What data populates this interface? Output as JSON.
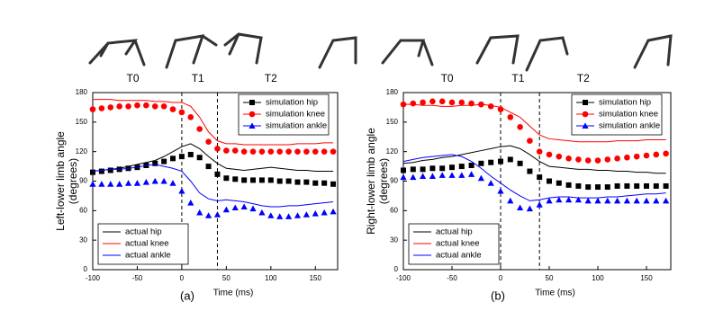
{
  "chart_data": [
    {
      "type": "line",
      "panel": "(a)",
      "xlabel": "Time (ms)",
      "ylabel": [
        "Left-lower limb angle",
        "(degrees)"
      ],
      "xlim": [
        -100,
        175
      ],
      "xticks": [
        -100,
        -50,
        0,
        50,
        100,
        150
      ],
      "ylim": [
        0,
        180
      ],
      "yticks": [
        0,
        30,
        60,
        90,
        120,
        150,
        180
      ],
      "vlines": [
        0,
        40
      ],
      "annotations": [
        {
          "text": "T0",
          "x": -55
        },
        {
          "text": "T1",
          "x": 18
        },
        {
          "text": "T2",
          "x": 100
        }
      ],
      "x": [
        -100,
        -90,
        -80,
        -70,
        -60,
        -50,
        -40,
        -30,
        -20,
        -10,
        0,
        10,
        20,
        30,
        40,
        50,
        60,
        70,
        80,
        90,
        100,
        110,
        120,
        130,
        140,
        150,
        160,
        170
      ],
      "series": [
        {
          "name": "simulation hip",
          "color": "#000000",
          "marker": "square",
          "legend": "upper right",
          "values": [
            99,
            100,
            101,
            102,
            103,
            104,
            106,
            108,
            110,
            113,
            115,
            117,
            114,
            105,
            97,
            93,
            92,
            91,
            91,
            91,
            91,
            90,
            90,
            89,
            89,
            88,
            88,
            87
          ]
        },
        {
          "name": "simulation knee",
          "color": "#ff0000",
          "marker": "circle",
          "legend": "upper right",
          "values": [
            163,
            164,
            165,
            166,
            166,
            167,
            167,
            166,
            166,
            163,
            160,
            155,
            143,
            130,
            123,
            121,
            121,
            120,
            120,
            120,
            120,
            120,
            120,
            120,
            120,
            120,
            120,
            120
          ]
        },
        {
          "name": "simulation ankle",
          "color": "#0000ff",
          "marker": "triangle",
          "legend": "upper right",
          "values": [
            87,
            87,
            87,
            87,
            88,
            88,
            89,
            90,
            90,
            88,
            80,
            68,
            58,
            55,
            56,
            61,
            63,
            64,
            62,
            58,
            55,
            54,
            54,
            55,
            56,
            57,
            58,
            59
          ]
        },
        {
          "name": "actual hip",
          "color": "#000000",
          "marker": "none",
          "legend": "lower left",
          "values": [
            100,
            101,
            102,
            103,
            105,
            107,
            109,
            111,
            115,
            120,
            125,
            128,
            123,
            115,
            108,
            103,
            102,
            101,
            102,
            103,
            104,
            103,
            102,
            101,
            101,
            100,
            100,
            100
          ]
        },
        {
          "name": "actual knee",
          "color": "#ff0000",
          "marker": "none",
          "legend": "lower left",
          "values": [
            173,
            173,
            173,
            172,
            172,
            172,
            172,
            171,
            171,
            170,
            170,
            166,
            155,
            140,
            131,
            128,
            128,
            127,
            127,
            127,
            127,
            127,
            127,
            128,
            128,
            128,
            129,
            129
          ]
        },
        {
          "name": "actual ankle",
          "color": "#0000ff",
          "marker": "none",
          "legend": "lower left",
          "values": [
            100,
            101,
            102,
            102,
            103,
            104,
            106,
            107,
            105,
            103,
            100,
            90,
            78,
            72,
            70,
            71,
            70,
            69,
            67,
            65,
            64,
            64,
            65,
            65,
            66,
            67,
            68,
            69
          ]
        }
      ]
    },
    {
      "type": "line",
      "panel": "(b)",
      "xlabel": "Time (ms)",
      "ylabel": [
        "Right-lower limb angle",
        "(degrees)"
      ],
      "xlim": [
        -100,
        175
      ],
      "xticks": [
        -100,
        -50,
        0,
        50,
        100,
        150
      ],
      "ylim": [
        0,
        180
      ],
      "yticks": [
        0,
        30,
        60,
        90,
        120,
        150,
        180
      ],
      "vlines": [
        0,
        40
      ],
      "annotations": [
        {
          "text": "T0",
          "x": -55
        },
        {
          "text": "T1",
          "x": 18
        },
        {
          "text": "T2",
          "x": 85
        }
      ],
      "x": [
        -100,
        -90,
        -80,
        -70,
        -60,
        -50,
        -40,
        -30,
        -20,
        -10,
        0,
        10,
        20,
        30,
        40,
        50,
        60,
        70,
        80,
        90,
        100,
        110,
        120,
        130,
        140,
        150,
        160,
        170
      ],
      "series": [
        {
          "name": "simulation hip",
          "color": "#000000",
          "marker": "square",
          "legend": "upper right",
          "values": [
            101,
            102,
            102,
            103,
            103,
            104,
            105,
            106,
            108,
            109,
            110,
            112,
            108,
            100,
            94,
            90,
            88,
            86,
            85,
            84,
            84,
            84,
            85,
            85,
            85,
            85,
            85,
            85
          ]
        },
        {
          "name": "simulation knee",
          "color": "#ff0000",
          "marker": "circle",
          "legend": "upper right",
          "values": [
            168,
            169,
            170,
            171,
            171,
            170,
            170,
            169,
            168,
            166,
            163,
            155,
            145,
            131,
            120,
            117,
            115,
            113,
            112,
            111,
            111,
            112,
            113,
            114,
            115,
            116,
            117,
            118
          ]
        },
        {
          "name": "simulation ankle",
          "color": "#0000ff",
          "marker": "triangle",
          "legend": "upper right",
          "values": [
            94,
            94,
            95,
            95,
            96,
            96,
            96,
            97,
            93,
            88,
            80,
            70,
            63,
            62,
            66,
            70,
            71,
            71,
            71,
            70,
            70,
            70,
            70,
            70,
            70,
            70,
            70,
            70
          ]
        },
        {
          "name": "actual hip",
          "color": "#000000",
          "marker": "none",
          "legend": "lower left",
          "values": [
            108,
            109,
            111,
            112,
            114,
            115,
            117,
            119,
            121,
            123,
            125,
            126,
            123,
            117,
            110,
            105,
            104,
            103,
            102,
            102,
            101,
            101,
            100,
            100,
            99,
            99,
            98,
            98
          ]
        },
        {
          "name": "actual knee",
          "color": "#ff0000",
          "marker": "none",
          "legend": "lower left",
          "values": [
            168,
            168,
            167,
            167,
            166,
            166,
            167,
            167,
            168,
            167,
            165,
            160,
            155,
            146,
            137,
            133,
            132,
            131,
            130,
            130,
            130,
            130,
            131,
            131,
            131,
            132,
            132,
            132
          ]
        },
        {
          "name": "actual ankle",
          "color": "#0000ff",
          "marker": "none",
          "legend": "lower left",
          "values": [
            110,
            112,
            114,
            115,
            116,
            117,
            115,
            110,
            103,
            95,
            88,
            81,
            75,
            70,
            71,
            73,
            74,
            74,
            73,
            73,
            73,
            74,
            74,
            75,
            76,
            77,
            77,
            78
          ]
        }
      ]
    }
  ]
}
